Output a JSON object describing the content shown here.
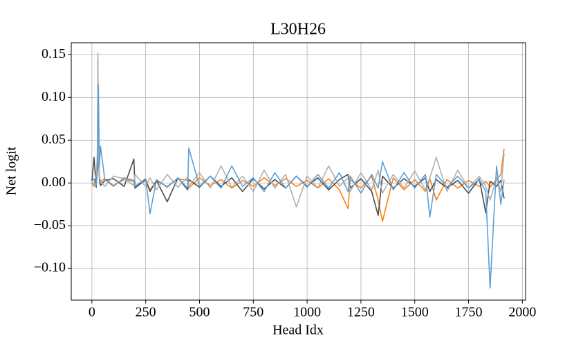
{
  "chart_data": {
    "type": "line",
    "title": "L30H26",
    "x_label": "Head Idx",
    "y_label": "Net logit",
    "x": [
      0,
      10,
      20,
      25,
      28,
      30,
      35,
      40,
      60,
      100,
      150,
      195,
      200,
      250,
      270,
      300,
      350,
      400,
      445,
      450,
      500,
      550,
      600,
      650,
      700,
      750,
      800,
      850,
      900,
      950,
      1000,
      1050,
      1100,
      1150,
      1190,
      1200,
      1250,
      1300,
      1330,
      1350,
      1400,
      1450,
      1500,
      1550,
      1570,
      1600,
      1650,
      1700,
      1750,
      1800,
      1830,
      1850,
      1880,
      1900,
      1915
    ],
    "series": [
      {
        "color": "#ff7f0e",
        "values": [
          0,
          -0.004,
          0.003,
          0.01,
          0.02,
          0.05,
          0.008,
          0.002,
          0.005,
          -0.003,
          0.004,
          0.002,
          -0.005,
          0.003,
          -0.008,
          0.002,
          -0.004,
          0.005,
          0.003,
          -0.006,
          0.006,
          -0.003,
          0.004,
          -0.006,
          0.003,
          -0.004,
          0.006,
          -0.003,
          0.005,
          -0.004,
          0.003,
          -0.006,
          0.005,
          -0.008,
          -0.03,
          0.004,
          -0.006,
          0.008,
          -0.02,
          -0.045,
          0.006,
          -0.008,
          0.004,
          -0.01,
          0.005,
          -0.02,
          0.004,
          -0.006,
          0.003,
          -0.004,
          0.002,
          -0.005,
          0.004,
          0.01,
          0.04
        ]
      },
      {
        "color": "#4a4a4a",
        "values": [
          0.002,
          0.03,
          -0.005,
          0.02,
          0.143,
          0.03,
          0.004,
          -0.003,
          0.003,
          0.005,
          -0.004,
          0.028,
          -0.006,
          0.004,
          -0.01,
          0.003,
          -0.022,
          0.006,
          -0.008,
          0.004,
          -0.005,
          0.008,
          -0.004,
          0.006,
          -0.01,
          0.005,
          -0.007,
          0.004,
          -0.006,
          0.008,
          -0.004,
          0.006,
          -0.008,
          0.004,
          0.01,
          -0.006,
          0.005,
          -0.01,
          -0.038,
          0.008,
          -0.006,
          0.005,
          -0.004,
          0.006,
          -0.01,
          0.004,
          -0.006,
          0.003,
          -0.012,
          0.005,
          -0.035,
          0.002,
          -0.004,
          0.003,
          -0.018
        ]
      },
      {
        "color": "#b0b0b0",
        "values": [
          0.003,
          -0.002,
          0.01,
          0.03,
          0.152,
          0.04,
          0.006,
          0.002,
          -0.004,
          0.008,
          0.005,
          -0.003,
          0.01,
          -0.004,
          0.006,
          -0.008,
          0.01,
          -0.005,
          0.007,
          -0.004,
          0.012,
          -0.006,
          0.02,
          -0.005,
          0.008,
          -0.01,
          0.015,
          -0.006,
          0.01,
          -0.028,
          0.008,
          -0.006,
          0.02,
          -0.004,
          0.006,
          -0.01,
          0.012,
          -0.008,
          0.015,
          -0.012,
          0.01,
          -0.006,
          0.014,
          -0.008,
          0.006,
          0.03,
          -0.01,
          0.015,
          -0.006,
          0.008,
          -0.004,
          -0.02,
          0.006,
          -0.01,
          0.035
        ]
      },
      {
        "color": "#5b9fd6",
        "values": [
          0.002,
          0.005,
          -0.003,
          0.012,
          0.05,
          0.115,
          0.02,
          0.043,
          0.004,
          -0.004,
          0.006,
          0.003,
          -0.004,
          0.005,
          -0.036,
          0.004,
          -0.005,
          0.006,
          -0.006,
          0.041,
          -0.004,
          0.008,
          -0.006,
          0.02,
          -0.004,
          0.006,
          -0.01,
          0.012,
          -0.006,
          0.008,
          -0.005,
          0.01,
          -0.006,
          0.012,
          -0.01,
          0.008,
          -0.012,
          0.01,
          -0.006,
          0.025,
          -0.008,
          0.012,
          -0.006,
          0.01,
          -0.04,
          0.01,
          -0.005,
          0.008,
          -0.006,
          0.004,
          -0.01,
          -0.123,
          0.02,
          -0.025,
          0.004
        ]
      }
    ],
    "xlim": [
      -96,
      2015
    ],
    "ylim": [
      -0.137,
      0.164
    ],
    "xticks": [
      0,
      250,
      500,
      750,
      1000,
      1250,
      1500,
      1750,
      2000
    ],
    "yticks": [
      {
        "value": -0.1,
        "label": "−0.10"
      },
      {
        "value": -0.05,
        "label": "−0.05"
      },
      {
        "value": 0,
        "label": "0.00"
      },
      {
        "value": 0.05,
        "label": "0.05"
      },
      {
        "value": 0.1,
        "label": "0.10"
      },
      {
        "value": 0.15,
        "label": "0.15"
      }
    ],
    "grid": true
  }
}
